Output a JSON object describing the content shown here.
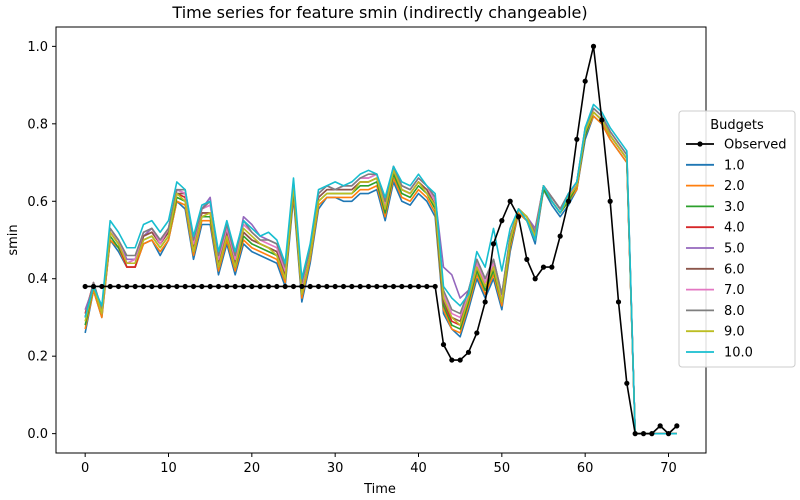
{
  "chart_data": {
    "type": "line",
    "title": "Time series for feature smin (indirectly changeable)",
    "xlabel": "Time",
    "ylabel": "smin",
    "xlim": [
      -3.5,
      74.5
    ],
    "ylim": [
      -0.05,
      1.05
    ],
    "xticks": [
      0,
      10,
      20,
      30,
      40,
      50,
      60,
      70
    ],
    "yticks": [
      0.0,
      0.2,
      0.4,
      0.6,
      0.8,
      1.0
    ],
    "xtick_labels": [
      "0",
      "10",
      "20",
      "30",
      "40",
      "50",
      "60",
      "70"
    ],
    "ytick_labels": [
      "0.0",
      "0.2",
      "0.4",
      "0.6",
      "0.8",
      "1.0"
    ],
    "legend_title": "Budgets",
    "legend_position": "center-right",
    "grid": false,
    "x": [
      0,
      1,
      2,
      3,
      4,
      5,
      6,
      7,
      8,
      9,
      10,
      11,
      12,
      13,
      14,
      15,
      16,
      17,
      18,
      19,
      20,
      21,
      22,
      23,
      24,
      25,
      26,
      27,
      28,
      29,
      30,
      31,
      32,
      33,
      34,
      35,
      36,
      37,
      38,
      39,
      40,
      41,
      42,
      43,
      44,
      45,
      46,
      47,
      48,
      49,
      50,
      51,
      52,
      53,
      54,
      55,
      56,
      57,
      58,
      59,
      60,
      61,
      62,
      63,
      64,
      65,
      66,
      67,
      68,
      69,
      70,
      71
    ],
    "series": [
      {
        "name": "Observed",
        "color": "#000000",
        "marker": true,
        "values": [
          0.38,
          0.38,
          0.38,
          0.38,
          0.38,
          0.38,
          0.38,
          0.38,
          0.38,
          0.38,
          0.38,
          0.38,
          0.38,
          0.38,
          0.38,
          0.38,
          0.38,
          0.38,
          0.38,
          0.38,
          0.38,
          0.38,
          0.38,
          0.38,
          0.38,
          0.38,
          0.38,
          0.38,
          0.38,
          0.38,
          0.38,
          0.38,
          0.38,
          0.38,
          0.38,
          0.38,
          0.38,
          0.38,
          0.38,
          0.38,
          0.38,
          0.38,
          0.38,
          0.23,
          0.19,
          0.19,
          0.21,
          0.26,
          0.34,
          0.49,
          0.55,
          0.6,
          0.56,
          0.45,
          0.4,
          0.43,
          0.43,
          0.51,
          0.6,
          0.76,
          0.91,
          1.0,
          0.81,
          0.6,
          0.34,
          0.13,
          0.0,
          0.0,
          0.0,
          0.02,
          0.0,
          0.02
        ]
      },
      {
        "name": "1.0",
        "color": "#1f77b4",
        "marker": false,
        "values": [
          0.26,
          0.37,
          0.3,
          0.5,
          0.47,
          0.43,
          0.43,
          0.49,
          0.5,
          0.46,
          0.5,
          0.6,
          0.58,
          0.45,
          0.54,
          0.54,
          0.41,
          0.49,
          0.41,
          0.49,
          0.47,
          0.46,
          0.45,
          0.44,
          0.38,
          0.61,
          0.34,
          0.44,
          0.58,
          0.61,
          0.61,
          0.6,
          0.6,
          0.62,
          0.62,
          0.63,
          0.55,
          0.65,
          0.6,
          0.59,
          0.62,
          0.6,
          0.56,
          0.31,
          0.27,
          0.25,
          0.32,
          0.4,
          0.35,
          0.4,
          0.32,
          0.47,
          0.57,
          0.55,
          0.49,
          0.63,
          0.59,
          0.56,
          0.59,
          0.63,
          0.76,
          0.82,
          0.8,
          0.76,
          0.73,
          0.7,
          0.0,
          0.0,
          0.0,
          0.0,
          0.0,
          0.0
        ]
      },
      {
        "name": "2.0",
        "color": "#ff7f0e",
        "marker": false,
        "values": [
          0.27,
          0.37,
          0.3,
          0.5,
          0.48,
          0.43,
          0.43,
          0.49,
          0.5,
          0.47,
          0.5,
          0.6,
          0.59,
          0.46,
          0.55,
          0.55,
          0.42,
          0.5,
          0.42,
          0.5,
          0.48,
          0.47,
          0.46,
          0.45,
          0.39,
          0.62,
          0.35,
          0.45,
          0.59,
          0.61,
          0.61,
          0.61,
          0.61,
          0.63,
          0.63,
          0.64,
          0.56,
          0.66,
          0.61,
          0.6,
          0.63,
          0.61,
          0.57,
          0.32,
          0.27,
          0.26,
          0.33,
          0.41,
          0.36,
          0.41,
          0.33,
          0.48,
          0.57,
          0.55,
          0.5,
          0.63,
          0.6,
          0.57,
          0.6,
          0.63,
          0.77,
          0.82,
          0.8,
          0.76,
          0.73,
          0.7,
          0.0,
          0.0,
          0.0,
          0.0,
          0.0,
          0.0
        ]
      },
      {
        "name": "3.0",
        "color": "#2ca02c",
        "marker": false,
        "values": [
          0.28,
          0.38,
          0.31,
          0.51,
          0.48,
          0.44,
          0.44,
          0.5,
          0.51,
          0.48,
          0.51,
          0.61,
          0.6,
          0.47,
          0.56,
          0.56,
          0.43,
          0.51,
          0.43,
          0.51,
          0.49,
          0.48,
          0.47,
          0.46,
          0.4,
          0.63,
          0.36,
          0.46,
          0.6,
          0.62,
          0.62,
          0.62,
          0.62,
          0.64,
          0.64,
          0.65,
          0.57,
          0.67,
          0.62,
          0.61,
          0.64,
          0.62,
          0.58,
          0.33,
          0.28,
          0.27,
          0.34,
          0.42,
          0.37,
          0.42,
          0.34,
          0.49,
          0.58,
          0.56,
          0.51,
          0.63,
          0.6,
          0.57,
          0.6,
          0.64,
          0.77,
          0.83,
          0.81,
          0.77,
          0.74,
          0.71,
          0.0,
          0.0,
          0.0,
          0.0,
          0.0,
          0.0
        ]
      },
      {
        "name": "4.0",
        "color": "#d62728",
        "marker": false,
        "values": [
          0.31,
          0.39,
          0.32,
          0.52,
          0.49,
          0.43,
          0.43,
          0.51,
          0.52,
          0.49,
          0.52,
          0.62,
          0.61,
          0.48,
          0.57,
          0.57,
          0.44,
          0.52,
          0.44,
          0.52,
          0.5,
          0.49,
          0.48,
          0.47,
          0.41,
          0.64,
          0.37,
          0.47,
          0.61,
          0.63,
          0.63,
          0.63,
          0.63,
          0.65,
          0.65,
          0.66,
          0.58,
          0.68,
          0.63,
          0.62,
          0.65,
          0.63,
          0.59,
          0.34,
          0.29,
          0.28,
          0.35,
          0.43,
          0.38,
          0.43,
          0.35,
          0.5,
          0.58,
          0.56,
          0.52,
          0.64,
          0.61,
          0.58,
          0.61,
          0.64,
          0.78,
          0.83,
          0.81,
          0.77,
          0.74,
          0.71,
          0.0,
          0.0,
          0.0,
          0.0,
          0.0,
          0.0
        ]
      },
      {
        "name": "5.0",
        "color": "#9467bd",
        "marker": false,
        "values": [
          0.32,
          0.38,
          0.32,
          0.53,
          0.5,
          0.45,
          0.45,
          0.51,
          0.53,
          0.5,
          0.53,
          0.63,
          0.62,
          0.49,
          0.58,
          0.61,
          0.45,
          0.53,
          0.45,
          0.56,
          0.54,
          0.51,
          0.5,
          0.49,
          0.42,
          0.65,
          0.38,
          0.48,
          0.62,
          0.64,
          0.63,
          0.64,
          0.64,
          0.66,
          0.66,
          0.67,
          0.59,
          0.69,
          0.64,
          0.63,
          0.66,
          0.64,
          0.61,
          0.43,
          0.41,
          0.35,
          0.37,
          0.45,
          0.4,
          0.45,
          0.36,
          0.51,
          0.58,
          0.56,
          0.53,
          0.64,
          0.61,
          0.58,
          0.62,
          0.65,
          0.78,
          0.84,
          0.82,
          0.78,
          0.75,
          0.72,
          0.0,
          0.0,
          0.0,
          0.0,
          0.0,
          0.0
        ]
      },
      {
        "name": "6.0",
        "color": "#8c564b",
        "marker": false,
        "values": [
          0.3,
          0.39,
          0.31,
          0.52,
          0.49,
          0.44,
          0.44,
          0.51,
          0.52,
          0.49,
          0.52,
          0.62,
          0.62,
          0.48,
          0.57,
          0.57,
          0.44,
          0.52,
          0.44,
          0.52,
          0.5,
          0.49,
          0.48,
          0.47,
          0.41,
          0.64,
          0.37,
          0.47,
          0.61,
          0.63,
          0.63,
          0.63,
          0.63,
          0.65,
          0.65,
          0.66,
          0.58,
          0.68,
          0.63,
          0.62,
          0.65,
          0.63,
          0.59,
          0.34,
          0.3,
          0.29,
          0.35,
          0.43,
          0.38,
          0.43,
          0.35,
          0.5,
          0.58,
          0.56,
          0.52,
          0.64,
          0.61,
          0.58,
          0.61,
          0.64,
          0.78,
          0.83,
          0.81,
          0.77,
          0.74,
          0.71,
          0.0,
          0.0,
          0.0,
          0.0,
          0.0,
          0.0
        ]
      },
      {
        "name": "7.0",
        "color": "#e377c2",
        "marker": false,
        "values": [
          0.3,
          0.39,
          0.31,
          0.52,
          0.5,
          0.44,
          0.45,
          0.52,
          0.53,
          0.49,
          0.53,
          0.63,
          0.62,
          0.49,
          0.58,
          0.59,
          0.45,
          0.53,
          0.45,
          0.54,
          0.52,
          0.5,
          0.49,
          0.48,
          0.42,
          0.65,
          0.38,
          0.48,
          0.62,
          0.64,
          0.63,
          0.64,
          0.64,
          0.66,
          0.66,
          0.67,
          0.59,
          0.69,
          0.64,
          0.63,
          0.66,
          0.64,
          0.6,
          0.36,
          0.31,
          0.3,
          0.36,
          0.44,
          0.39,
          0.44,
          0.35,
          0.5,
          0.58,
          0.56,
          0.52,
          0.64,
          0.61,
          0.58,
          0.61,
          0.65,
          0.78,
          0.84,
          0.82,
          0.78,
          0.75,
          0.72,
          0.0,
          0.0,
          0.0,
          0.0,
          0.0,
          0.0
        ]
      },
      {
        "name": "8.0",
        "color": "#7f7f7f",
        "marker": false,
        "values": [
          0.3,
          0.39,
          0.32,
          0.53,
          0.5,
          0.46,
          0.46,
          0.52,
          0.53,
          0.5,
          0.53,
          0.63,
          0.63,
          0.5,
          0.58,
          0.6,
          0.46,
          0.54,
          0.46,
          0.55,
          0.52,
          0.5,
          0.5,
          0.49,
          0.43,
          0.65,
          0.39,
          0.48,
          0.62,
          0.64,
          0.63,
          0.64,
          0.64,
          0.66,
          0.67,
          0.67,
          0.6,
          0.69,
          0.64,
          0.63,
          0.66,
          0.64,
          0.61,
          0.37,
          0.32,
          0.31,
          0.37,
          0.45,
          0.4,
          0.45,
          0.36,
          0.51,
          0.58,
          0.56,
          0.52,
          0.64,
          0.61,
          0.58,
          0.62,
          0.65,
          0.79,
          0.84,
          0.82,
          0.78,
          0.75,
          0.72,
          0.0,
          0.0,
          0.0,
          0.0,
          0.0,
          0.0
        ]
      },
      {
        "name": "9.0",
        "color": "#bcbd22",
        "marker": false,
        "values": [
          0.29,
          0.38,
          0.31,
          0.52,
          0.49,
          0.44,
          0.44,
          0.5,
          0.51,
          0.48,
          0.51,
          0.62,
          0.6,
          0.47,
          0.56,
          0.57,
          0.43,
          0.51,
          0.43,
          0.53,
          0.51,
          0.49,
          0.48,
          0.46,
          0.4,
          0.64,
          0.36,
          0.46,
          0.6,
          0.62,
          0.62,
          0.62,
          0.62,
          0.65,
          0.65,
          0.66,
          0.58,
          0.68,
          0.63,
          0.62,
          0.65,
          0.62,
          0.59,
          0.35,
          0.3,
          0.28,
          0.35,
          0.43,
          0.38,
          0.43,
          0.34,
          0.5,
          0.58,
          0.56,
          0.51,
          0.64,
          0.6,
          0.57,
          0.61,
          0.64,
          0.78,
          0.83,
          0.81,
          0.77,
          0.74,
          0.71,
          0.0,
          0.0,
          0.0,
          0.0,
          0.0,
          0.0
        ]
      },
      {
        "name": "10.0",
        "color": "#17becf",
        "marker": false,
        "values": [
          0.3,
          0.38,
          0.33,
          0.55,
          0.52,
          0.48,
          0.48,
          0.54,
          0.55,
          0.52,
          0.55,
          0.65,
          0.63,
          0.51,
          0.59,
          0.6,
          0.47,
          0.55,
          0.47,
          0.55,
          0.53,
          0.51,
          0.52,
          0.5,
          0.44,
          0.66,
          0.4,
          0.49,
          0.63,
          0.64,
          0.65,
          0.64,
          0.65,
          0.67,
          0.68,
          0.67,
          0.61,
          0.69,
          0.65,
          0.64,
          0.67,
          0.64,
          0.62,
          0.38,
          0.35,
          0.33,
          0.36,
          0.47,
          0.43,
          0.53,
          0.42,
          0.53,
          0.58,
          0.55,
          0.5,
          0.64,
          0.6,
          0.57,
          0.62,
          0.65,
          0.79,
          0.85,
          0.83,
          0.79,
          0.76,
          0.73,
          0.0,
          0.0,
          0.0,
          0.0,
          0.0,
          0.0
        ]
      }
    ]
  }
}
